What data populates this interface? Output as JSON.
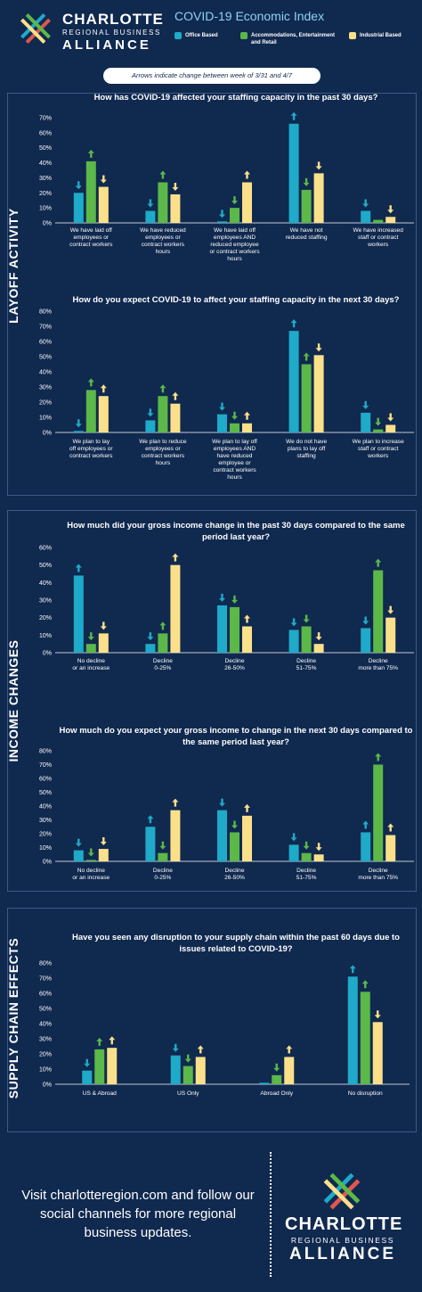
{
  "brand": {
    "line1": "CHARLOTTE",
    "line2": "REGIONAL BUSINESS",
    "line3": "ALLIANCE",
    "logo_icon": "crosshatch-star-logo"
  },
  "index_title": "COVID-19 Economic Index",
  "legend": [
    {
      "label": "Office Based",
      "color": "#1eaac8"
    },
    {
      "label": "Accommodations, Entertainment and Retail",
      "color": "#5bb849"
    },
    {
      "label": "Industrial Based",
      "color": "#fbe08a"
    }
  ],
  "arrow_note": "Arrows indicate change between week of 3/31 and 4/7",
  "sections": [
    "LAYOFF ACTIVITY",
    "INCOME CHANGES",
    "SUPPLY CHAIN EFFECTS"
  ],
  "colors": {
    "background": "#10294f",
    "office": "#1eaac8",
    "accommodations": "#5bb849",
    "industrial": "#fbe08a",
    "divider": "#3c5b88"
  },
  "chart_data": [
    {
      "type": "bar",
      "title": [
        "How has COVID-19 affected your staffing capacity in the past 30 days?"
      ],
      "yticks": [
        "70%",
        "60%",
        "50%",
        "40%",
        "30%",
        "20%",
        "10%",
        "0%"
      ],
      "ylim": [
        0,
        70
      ],
      "categories": [
        [
          "We have laid off",
          "employees or",
          "contract workers"
        ],
        [
          "We have reduced",
          "employees or",
          "contract workers",
          "hours"
        ],
        [
          "We have laid off",
          "employees AND",
          "reduced employee",
          "or contract workers",
          "hours"
        ],
        [
          "We have not",
          "reduced staffing"
        ],
        [
          "We have increased",
          "staff or contract",
          "workers"
        ]
      ],
      "series": [
        {
          "name": "Office Based",
          "values": [
            20,
            8,
            1,
            66,
            8
          ],
          "arrows": [
            "down",
            "down",
            "down",
            "up",
            "down"
          ]
        },
        {
          "name": "Accommodations, Entertainment and Retail",
          "values": [
            41,
            27,
            10,
            22,
            2
          ],
          "arrows": [
            "up",
            "up",
            "down",
            "down",
            "none"
          ]
        },
        {
          "name": "Industrial Based",
          "values": [
            24,
            19,
            27,
            33,
            4
          ],
          "arrows": [
            "down",
            "down",
            "up",
            "down",
            "down"
          ]
        }
      ]
    },
    {
      "type": "bar",
      "title": [
        "How do you expect COVID-19 to affect your staffing capacity in the next 30 days?"
      ],
      "yticks": [
        "80%",
        "70%",
        "60%",
        "50%",
        "40%",
        "30%",
        "20%",
        "10%",
        "0%"
      ],
      "ylim": [
        0,
        80
      ],
      "categories": [
        [
          "We plan to lay",
          "off employees or",
          "contract workers"
        ],
        [
          "We plan to reduce",
          "employees or",
          "contract workers",
          "hours"
        ],
        [
          "We plan to lay off",
          "employees AND",
          "have reduced",
          "employee or",
          "contract workers",
          "hours"
        ],
        [
          "We do not have",
          "plans to lay off",
          "staffing"
        ],
        [
          "We plan to increase",
          "staff or contract",
          "workers"
        ]
      ],
      "series": [
        {
          "name": "Office Based",
          "values": [
            1,
            8,
            12,
            67,
            13
          ],
          "arrows": [
            "down",
            "down",
            "down",
            "up",
            "down"
          ]
        },
        {
          "name": "Accommodations, Entertainment and Retail",
          "values": [
            28,
            24,
            6,
            45,
            2
          ],
          "arrows": [
            "up",
            "up",
            "down",
            "up",
            "down"
          ]
        },
        {
          "name": "Industrial Based",
          "values": [
            24,
            19,
            6,
            51,
            5
          ],
          "arrows": [
            "up",
            "up",
            "up",
            "down",
            "down"
          ]
        }
      ]
    },
    {
      "type": "bar",
      "title": [
        "How much did your gross income change in the past 30 days compared to the same",
        "period last year?"
      ],
      "yticks": [
        "60%",
        "50%",
        "40%",
        "30%",
        "20%",
        "10%",
        "0%"
      ],
      "ylim": [
        0,
        60
      ],
      "categories": [
        [
          "No decline",
          "or an increase"
        ],
        [
          "Decline",
          "0-25%"
        ],
        [
          "Decline",
          "26-50%"
        ],
        [
          "Decline",
          "51-75%"
        ],
        [
          "Decline",
          "more than 75%"
        ]
      ],
      "series": [
        {
          "name": "Office Based",
          "values": [
            44,
            5,
            27,
            13,
            14
          ],
          "arrows": [
            "up",
            "down",
            "down",
            "down",
            "down"
          ]
        },
        {
          "name": "Accommodations, Entertainment and Retail",
          "values": [
            5,
            11,
            26,
            15,
            47
          ],
          "arrows": [
            "down",
            "up",
            "down",
            "down",
            "up"
          ]
        },
        {
          "name": "Industrial Based",
          "values": [
            11,
            50,
            15,
            5,
            20
          ],
          "arrows": [
            "down",
            "up",
            "up",
            "down",
            "down"
          ]
        }
      ]
    },
    {
      "type": "bar",
      "title": [
        "How much do you expect your gross income to change in the next 30 days compared to",
        "the same period last year?"
      ],
      "yticks": [
        "80%",
        "70%",
        "60%",
        "50%",
        "40%",
        "30%",
        "20%",
        "10%",
        "0%"
      ],
      "ylim": [
        0,
        80
      ],
      "categories": [
        [
          "No decline",
          "or an increase"
        ],
        [
          "Decline",
          "0-25%"
        ],
        [
          "Decline",
          "26-50%"
        ],
        [
          "Decline",
          "51-75%"
        ],
        [
          "Decline",
          "more than 75%"
        ]
      ],
      "series": [
        {
          "name": "Office Based",
          "values": [
            8,
            25,
            37,
            12,
            21
          ],
          "arrows": [
            "down",
            "up",
            "down",
            "down",
            "up"
          ]
        },
        {
          "name": "Accommodations, Entertainment and Retail",
          "values": [
            1,
            6,
            21,
            6,
            70
          ],
          "arrows": [
            "down",
            "down",
            "down",
            "down",
            "up"
          ]
        },
        {
          "name": "Industrial Based",
          "values": [
            9,
            37,
            33,
            5,
            19
          ],
          "arrows": [
            "down",
            "up",
            "up",
            "down",
            "up"
          ]
        }
      ]
    },
    {
      "type": "bar",
      "title": [
        "Have you seen any disruption to your supply chain within the past 60 days due to",
        "issues related to COVID-19?"
      ],
      "yticks": [
        "80%",
        "70%",
        "60%",
        "50%",
        "40%",
        "30%",
        "20%",
        "10%",
        "0%"
      ],
      "ylim": [
        0,
        80
      ],
      "categories": [
        [
          "US & Abroad"
        ],
        [
          "US Only"
        ],
        [
          "Abroad Only"
        ],
        [
          "No disruption"
        ]
      ],
      "series": [
        {
          "name": "Office Based",
          "values": [
            9,
            19,
            1,
            71
          ],
          "arrows": [
            "down",
            "down",
            "none",
            "up"
          ]
        },
        {
          "name": "Accommodations, Entertainment and Retail",
          "values": [
            23,
            12,
            6,
            61
          ],
          "arrows": [
            "up",
            "down",
            "down",
            "up"
          ]
        },
        {
          "name": "Industrial Based",
          "values": [
            24,
            18,
            18,
            41
          ],
          "arrows": [
            "up",
            "up",
            "up",
            "down"
          ]
        }
      ]
    }
  ],
  "footer": {
    "text": "Visit charlotteregion.com and follow our social channels for more regional business updates.",
    "brand_line1": "CHARLOTTE",
    "brand_line2": "REGIONAL BUSINESS",
    "brand_line3": "ALLIANCE"
  }
}
